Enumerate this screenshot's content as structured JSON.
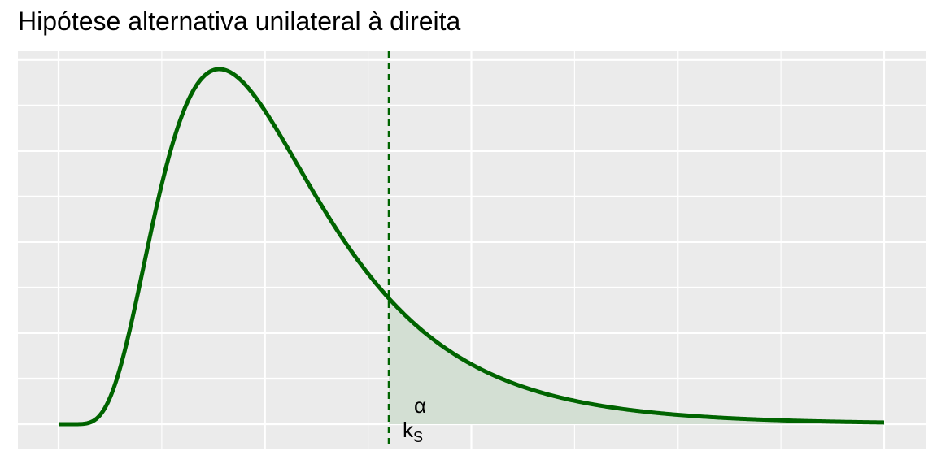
{
  "chart_data": {
    "type": "area",
    "title": "Hipótese alternativa unilateral à direita",
    "xlabel": "",
    "ylabel": "",
    "xlim": [
      0,
      4
    ],
    "ylim": [
      0,
      0.77
    ],
    "grid": true,
    "legend": "none",
    "distribution": {
      "family": "lognormal",
      "meanlog": 0,
      "sdlog": 0.5
    },
    "series": [
      {
        "name": "",
        "kind": "density-curve",
        "color": "#006400"
      }
    ],
    "critical_value": {
      "x": 1.6,
      "label_main": "k",
      "label_sub": "S"
    },
    "rejection_region": {
      "from": 1.6,
      "to": 4,
      "fill": "#d3dfd3",
      "label": "α"
    },
    "style": {
      "panel_bg": "#ebebeb",
      "grid_color": "#ffffff",
      "line_color": "#006400"
    }
  }
}
